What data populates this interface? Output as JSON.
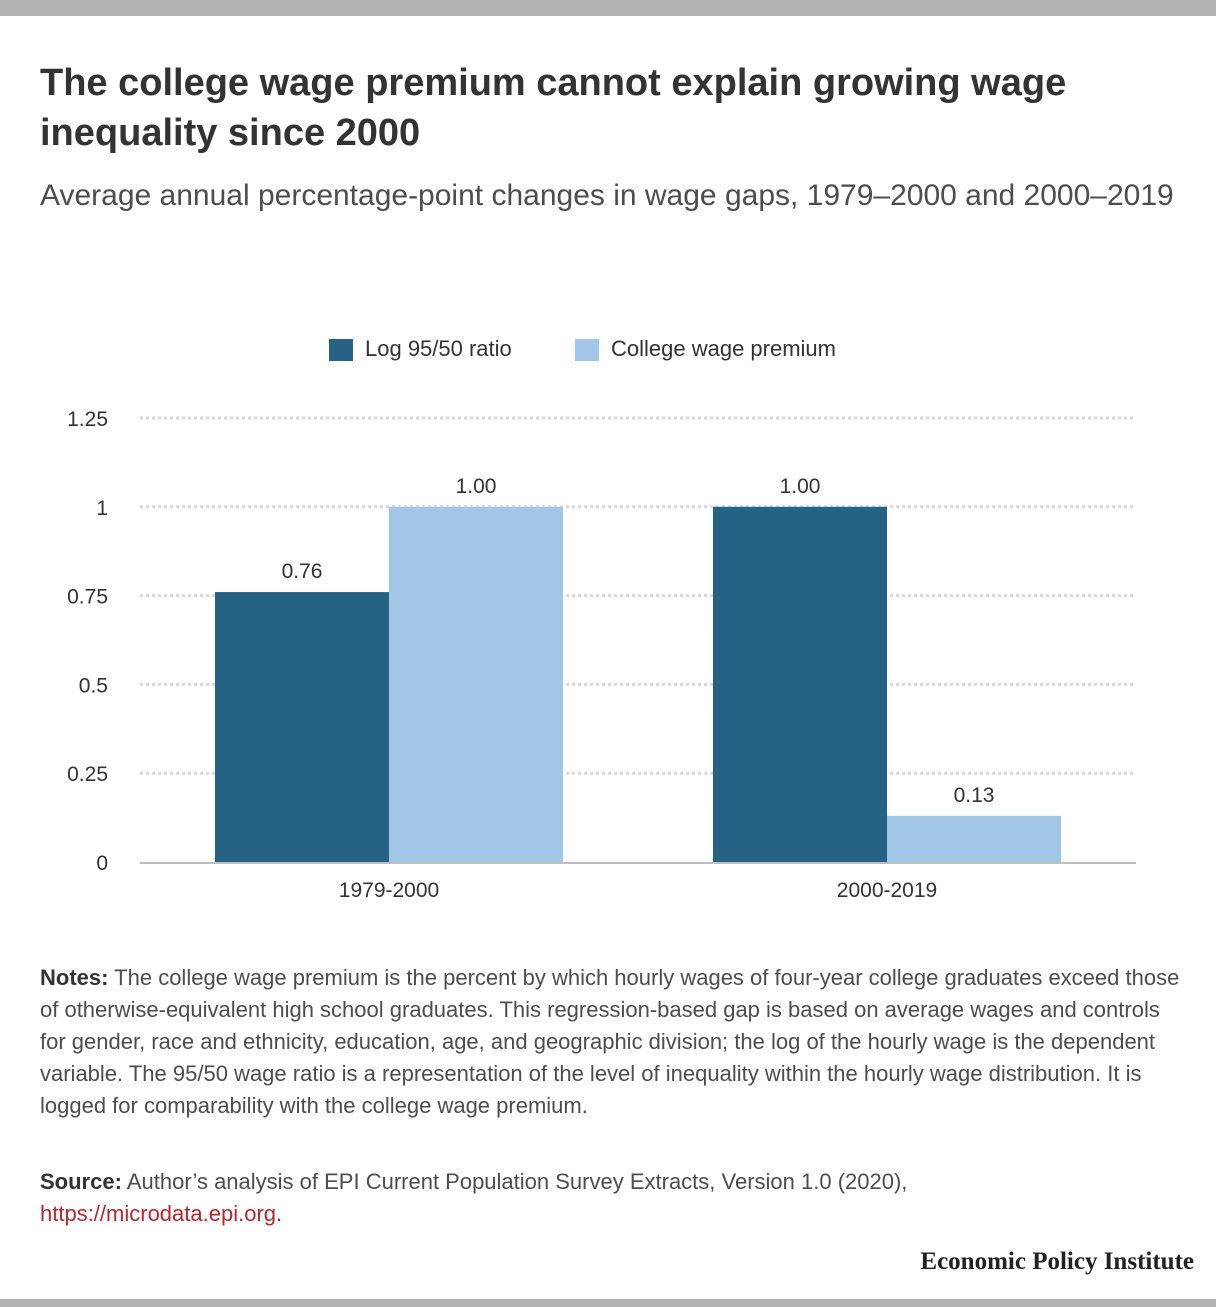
{
  "header": {
    "title": "The college wage premium cannot explain growing wage inequality since 2000",
    "subtitle": "Average annual percentage-point changes in wage gaps, 1979–2000 and 2000–2019"
  },
  "legend": [
    {
      "label": "Log 95/50 ratio",
      "color": "#256284"
    },
    {
      "label": "College wage premium",
      "color": "#a1c6e7"
    }
  ],
  "chart_data": {
    "type": "bar",
    "categories": [
      "1979-2000",
      "2000-2019"
    ],
    "series": [
      {
        "name": "Log 95/50 ratio",
        "values": [
          0.76,
          1.0
        ],
        "labels": [
          "0.76",
          "1.00"
        ],
        "color": "#256284"
      },
      {
        "name": "College wage premium",
        "values": [
          1.0,
          0.13
        ],
        "labels": [
          "1.00",
          "0.13"
        ],
        "color": "#a1c6e7"
      }
    ],
    "yticks": [
      {
        "value": 0,
        "label": "0"
      },
      {
        "value": 0.25,
        "label": "0.25"
      },
      {
        "value": 0.5,
        "label": "0.5"
      },
      {
        "value": 0.75,
        "label": "0.75"
      },
      {
        "value": 1,
        "label": "1"
      },
      {
        "value": 1.25,
        "label": "1.25"
      }
    ],
    "ylim": [
      0,
      1.25
    ],
    "grid": true,
    "legend_position": "top-center"
  },
  "footer": {
    "notes_label": "Notes:",
    "notes_text": "The college wage premium is the percent by which hourly wages of four-year college graduates exceed those of otherwise-equivalent high school graduates. This regression-based gap is based on average wages and controls for gender, race and ethnicity, education, age, and geographic division; the log of the hourly wage is the dependent variable. The 95/50 wage ratio is a representation of the level of inequality within the hourly wage distribution. It is logged for comparability with the college wage premium.",
    "source_label": "Source:",
    "source_text": "Author’s analysis of EPI Current Population Survey Extracts, Version 1.0 (2020),",
    "source_link": "https://microdata.epi.org.",
    "brand": "Economic Policy Institute"
  }
}
